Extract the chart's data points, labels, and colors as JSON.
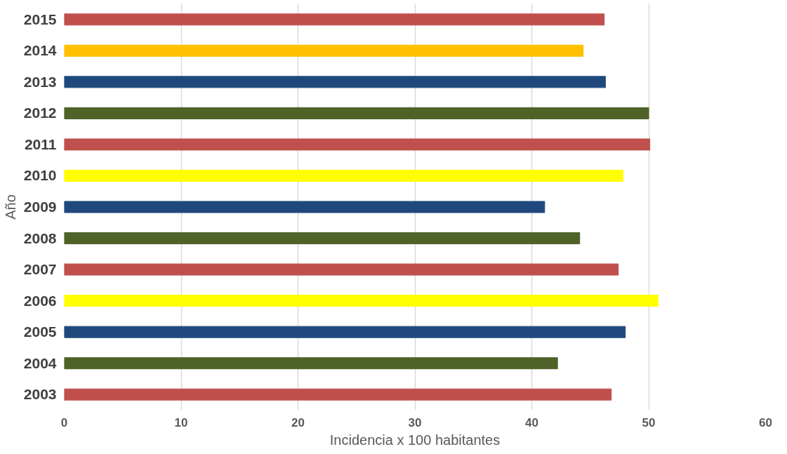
{
  "chart_data": {
    "type": "bar",
    "orientation": "horizontal",
    "xlabel": "Incidencia x 100 habitantes",
    "ylabel": "Año",
    "categories": [
      "2015",
      "2014",
      "2013",
      "2012",
      "2011",
      "2010",
      "2009",
      "2008",
      "2007",
      "2006",
      "2005",
      "2004",
      "2003"
    ],
    "values": [
      46.2,
      44.4,
      46.3,
      50.0,
      50.1,
      47.8,
      41.1,
      44.1,
      47.4,
      50.8,
      48.0,
      42.2,
      46.8
    ],
    "colors": [
      "#c0504d",
      "#ffc000",
      "#1f497d",
      "#4f6228",
      "#c0504d",
      "#ffff00",
      "#1f497d",
      "#4f6228",
      "#c0504d",
      "#ffff00",
      "#1f497d",
      "#4f6228",
      "#c0504d"
    ],
    "xlim": [
      0,
      60
    ],
    "xticks": [
      0,
      10,
      20,
      30,
      40,
      50,
      60
    ],
    "grid": "x"
  }
}
